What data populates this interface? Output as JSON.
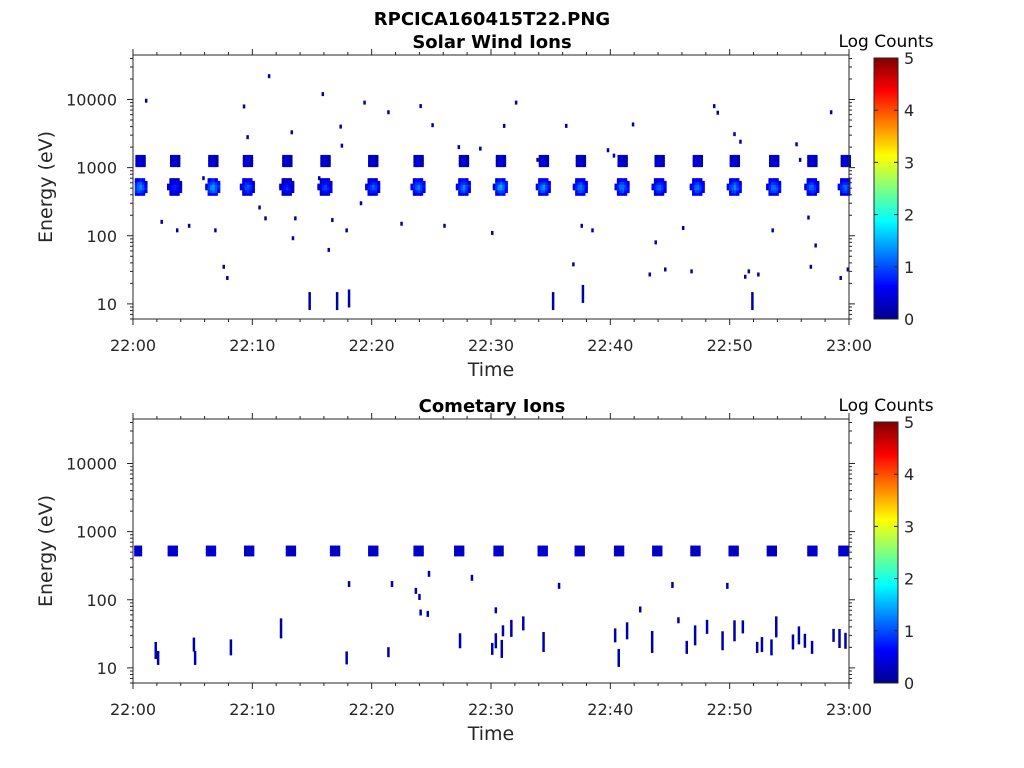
{
  "figure_title": "RPCICA160415T22.PNG",
  "colors": {
    "axis": "#262626",
    "background": "#ffffff"
  },
  "chart_data": [
    {
      "type": "heatmap",
      "title": "Solar Wind Ions",
      "xlabel": "Time",
      "ylabel": "Energy (eV)",
      "x_range": [
        "22:00",
        "23:00"
      ],
      "x_ticks": [
        "22:00",
        "22:10",
        "22:20",
        "22:30",
        "22:40",
        "22:50",
        "23:00"
      ],
      "y_scale": "log",
      "y_range": [
        6,
        45000
      ],
      "y_ticks": [
        10,
        100,
        1000,
        10000
      ],
      "y_tick_labels": [
        "10",
        "100",
        "1000",
        "10000"
      ],
      "colorbar": {
        "label": "Log Counts",
        "range": [
          0,
          5
        ],
        "ticks": [
          "0",
          "1",
          "2",
          "3",
          "4",
          "5"
        ],
        "colormap": "jet"
      },
      "solar_wind_peaks": {
        "energy_main_eV": 520,
        "energy_alpha_eV": 1250,
        "times_min": [
          0.5,
          3.4,
          6.6,
          9.5,
          12.8,
          16.0,
          20.0,
          23.8,
          27.6,
          30.7,
          34.3,
          37.4,
          40.9,
          44.0,
          47.2,
          50.3,
          53.6,
          56.8,
          59.6
        ],
        "log_counts": [
          1.5,
          0.9,
          1.6,
          1.2,
          0.9,
          1.0,
          1.2,
          1.3,
          1.4,
          1.6,
          1.5,
          1.4,
          1.4,
          1.3,
          1.4,
          1.4,
          1.4,
          1.3,
          1.3
        ]
      },
      "scatter_points": [
        [
          1.0,
          9600
        ],
        [
          2.3,
          160
        ],
        [
          3.6,
          120
        ],
        [
          4.6,
          140
        ],
        [
          5.8,
          700
        ],
        [
          6.8,
          120
        ],
        [
          7.5,
          35
        ],
        [
          7.8,
          24
        ],
        [
          9.2,
          7900
        ],
        [
          9.5,
          2800
        ],
        [
          10.5,
          260
        ],
        [
          11.0,
          180
        ],
        [
          11.3,
          22000
        ],
        [
          13.2,
          3300
        ],
        [
          13.3,
          92
        ],
        [
          13.5,
          180
        ],
        [
          14.7,
          11
        ],
        [
          15.5,
          700
        ],
        [
          15.8,
          12000
        ],
        [
          16.3,
          62
        ],
        [
          16.6,
          170
        ],
        [
          17.0,
          11
        ],
        [
          17.3,
          4000
        ],
        [
          17.4,
          2100
        ],
        [
          17.8,
          120
        ],
        [
          18.0,
          12
        ],
        [
          19.0,
          300
        ],
        [
          19.3,
          9000
        ],
        [
          21.3,
          6500
        ],
        [
          22.4,
          150
        ],
        [
          24.0,
          8000
        ],
        [
          25.0,
          4200
        ],
        [
          26.0,
          140
        ],
        [
          27.2,
          2000
        ],
        [
          29.0,
          1900
        ],
        [
          30.0,
          110
        ],
        [
          31.0,
          4100
        ],
        [
          32.0,
          9000
        ],
        [
          33.8,
          1300
        ],
        [
          35.1,
          11
        ],
        [
          36.2,
          4100
        ],
        [
          36.8,
          38
        ],
        [
          37.5,
          140
        ],
        [
          37.6,
          14
        ],
        [
          38.4,
          120
        ],
        [
          39.7,
          1800
        ],
        [
          40.2,
          1500
        ],
        [
          41.8,
          4300
        ],
        [
          43.2,
          27
        ],
        [
          43.7,
          80
        ],
        [
          44.5,
          32
        ],
        [
          46.0,
          130
        ],
        [
          46.7,
          30
        ],
        [
          48.6,
          8000
        ],
        [
          48.9,
          6400
        ],
        [
          50.3,
          3100
        ],
        [
          50.8,
          2400
        ],
        [
          51.2,
          25
        ],
        [
          51.5,
          30
        ],
        [
          51.8,
          11
        ],
        [
          52.3,
          27
        ],
        [
          53.5,
          120
        ],
        [
          55.5,
          2200
        ],
        [
          55.8,
          1300
        ],
        [
          56.5,
          185
        ],
        [
          56.7,
          35
        ],
        [
          57.1,
          72
        ],
        [
          58.4,
          6500
        ],
        [
          59.2,
          24
        ],
        [
          59.8,
          32
        ]
      ]
    },
    {
      "type": "heatmap",
      "title": "Cometary Ions",
      "xlabel": "Time",
      "ylabel": "Energy (eV)",
      "x_range": [
        "22:00",
        "23:00"
      ],
      "x_ticks": [
        "22:00",
        "22:10",
        "22:20",
        "22:30",
        "22:40",
        "22:50",
        "23:00"
      ],
      "y_scale": "log",
      "y_range": [
        6,
        45000
      ],
      "y_ticks": [
        10,
        100,
        1000,
        10000
      ],
      "y_tick_labels": [
        "10",
        "100",
        "1000",
        "10000"
      ],
      "colorbar": {
        "label": "Log Counts",
        "range": [
          0,
          5
        ],
        "ticks": [
          "0",
          "1",
          "2",
          "3",
          "4",
          "5"
        ],
        "colormap": "jet"
      },
      "band_energy_eV": 520,
      "band_times_min": [
        0.2,
        3.2,
        6.4,
        9.6,
        13.1,
        16.8,
        20.0,
        23.8,
        27.2,
        30.5,
        34.2,
        37.3,
        40.6,
        43.8,
        47.0,
        50.2,
        53.4,
        56.8,
        59.4
      ],
      "low_energy_points": [
        [
          1.8,
          18
        ],
        [
          2.0,
          14
        ],
        [
          5.0,
          22
        ],
        [
          5.1,
          14
        ],
        [
          8.1,
          20
        ],
        [
          8.2,
          6
        ],
        [
          12.3,
          38
        ],
        [
          17.8,
          14
        ],
        [
          18.0,
          170
        ],
        [
          21.3,
          17
        ],
        [
          21.6,
          170
        ],
        [
          23.6,
          135
        ],
        [
          23.9,
          110
        ],
        [
          24.0,
          65
        ],
        [
          24.6,
          62
        ],
        [
          24.7,
          240
        ],
        [
          27.3,
          25
        ],
        [
          28.3,
          210
        ],
        [
          30.0,
          19
        ],
        [
          30.3,
          70
        ],
        [
          30.3,
          25
        ],
        [
          30.8,
          19
        ],
        [
          30.9,
          35
        ],
        [
          31.6,
          38
        ],
        [
          32.6,
          45
        ],
        [
          34.3,
          24
        ],
        [
          35.6,
          160
        ],
        [
          40.3,
          30
        ],
        [
          40.6,
          14
        ],
        [
          41.3,
          35
        ],
        [
          42.4,
          72
        ],
        [
          43.4,
          24
        ],
        [
          45.1,
          165
        ],
        [
          45.6,
          50
        ],
        [
          46.3,
          20
        ],
        [
          47.0,
          30
        ],
        [
          48.0,
          40
        ],
        [
          49.3,
          25
        ],
        [
          49.7,
          160
        ],
        [
          50.3,
          35
        ],
        [
          51.0,
          40
        ],
        [
          52.2,
          20
        ],
        [
          52.6,
          22
        ],
        [
          53.4,
          20
        ],
        [
          53.8,
          40
        ],
        [
          55.2,
          24
        ],
        [
          55.7,
          30
        ],
        [
          56.2,
          25
        ],
        [
          56.8,
          20
        ],
        [
          58.6,
          30
        ],
        [
          59.1,
          27
        ],
        [
          59.6,
          25
        ]
      ]
    }
  ]
}
